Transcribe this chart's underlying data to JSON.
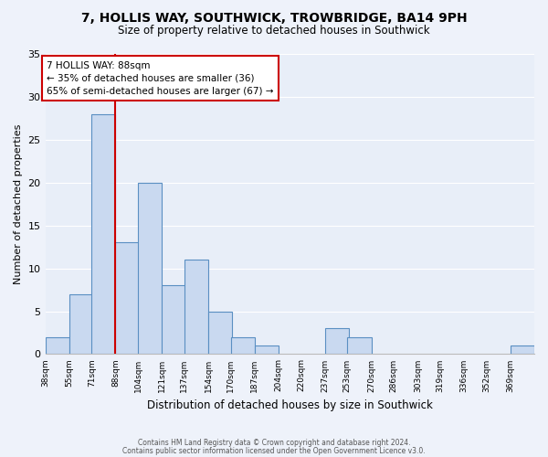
{
  "title": "7, HOLLIS WAY, SOUTHWICK, TROWBRIDGE, BA14 9PH",
  "subtitle": "Size of property relative to detached houses in Southwick",
  "xlabel": "Distribution of detached houses by size in Southwick",
  "ylabel": "Number of detached properties",
  "bins": [
    38,
    55,
    71,
    88,
    104,
    121,
    137,
    154,
    170,
    187,
    204,
    220,
    237,
    253,
    270,
    286,
    303,
    319,
    336,
    352,
    369
  ],
  "counts": [
    2,
    7,
    28,
    13,
    20,
    8,
    11,
    5,
    2,
    1,
    0,
    0,
    3,
    2,
    0,
    0,
    0,
    0,
    0,
    0,
    1
  ],
  "bar_color": "#c9d9f0",
  "bar_edge_color": "#5a8fc2",
  "reference_line_x": 88,
  "reference_line_color": "#cc0000",
  "annotation_line1": "7 HOLLIS WAY: 88sqm",
  "annotation_line2": "← 35% of detached houses are smaller (36)",
  "annotation_line3": "65% of semi-detached houses are larger (67) →",
  "annotation_box_color": "#ffffff",
  "annotation_box_edge_color": "#cc0000",
  "ylim": [
    0,
    35
  ],
  "yticks": [
    0,
    5,
    10,
    15,
    20,
    25,
    30,
    35
  ],
  "bg_color": "#e8eef8",
  "grid_color": "#ffffff",
  "fig_bg_color": "#eef2fa",
  "footer_line1": "Contains HM Land Registry data © Crown copyright and database right 2024.",
  "footer_line2": "Contains public sector information licensed under the Open Government Licence v3.0."
}
